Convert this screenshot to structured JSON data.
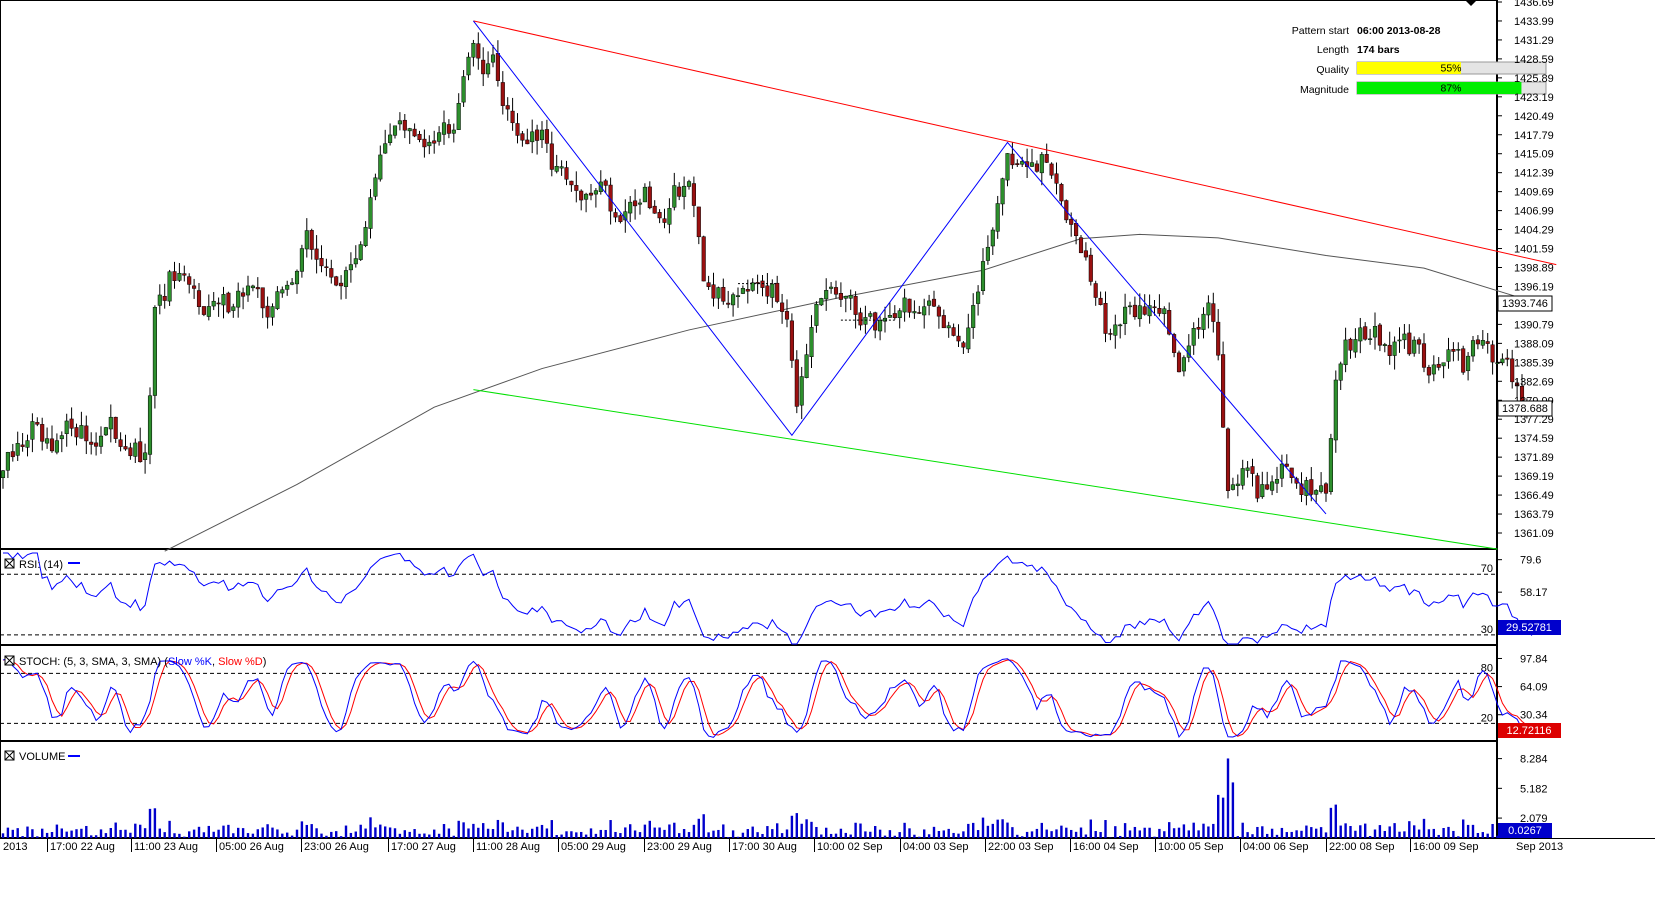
{
  "pattern_info": {
    "start_label": "Pattern start",
    "start_value": "06:00 2013-08-28",
    "length_label": "Length",
    "length_value": "174 bars",
    "quality_label": "Quality",
    "quality_value": "55%",
    "quality_fraction": 0.55,
    "magnitude_label": "Magnitude",
    "magnitude_value": "87%",
    "magnitude_fraction": 0.87
  },
  "colors": {
    "bull": "#2d8f2d",
    "bear": "#9a1010",
    "resistance": "#ff0000",
    "support": "#00e000",
    "zigzag": "#0000ff",
    "ma": "#555555",
    "rsi": "#0000ff",
    "stoch_k": "#0000ff",
    "stoch_d": "#ff0000",
    "volume": "#0000cc",
    "quality_bar": "#ffff00",
    "magnitude_bar": "#00ee00",
    "ma_value_box": "#ffffff",
    "rsi_value_box": "#0000cc",
    "stoch_value_box": "#dd0000",
    "volume_value_box": "#0000cc"
  },
  "chart_data": [
    {
      "type": "candlestick",
      "panel": "price",
      "y_ticks": [
        "1436.69",
        "1433.99",
        "1431.29",
        "1428.59",
        "1425.89",
        "1423.19",
        "1420.49",
        "1417.79",
        "1415.09",
        "1412.39",
        "1409.69",
        "1406.99",
        "1404.29",
        "1401.59",
        "1398.89",
        "1396.19",
        "1390.79",
        "1388.09",
        "1385.39",
        "1382.69",
        "1379.99",
        "1377.29",
        "1374.59",
        "1371.89",
        "1369.19",
        "1366.49",
        "1363.79",
        "1361.09"
      ],
      "ylim": [
        1358.5,
        1437.5
      ],
      "x_tick_labels": [
        "2013",
        "17:00 22 Aug",
        "11:00 23 Aug",
        "05:00 26 Aug",
        "23:00 26 Aug",
        "17:00 27 Aug",
        "11:00 28 Aug",
        "05:00 29 Aug",
        "23:00 29 Aug",
        "17:00 30 Aug",
        "10:00 02 Sep",
        "04:00 03 Sep",
        "22:00 03 Sep",
        "16:00 04 Sep",
        "10:00 05 Sep",
        "04:00 06 Sep",
        "22:00 08 Sep",
        "16:00 09 Sep",
        "Sep 2013"
      ],
      "path_anchors": [
        {
          "i": 0,
          "c": 1370
        },
        {
          "i": 6,
          "c": 1376
        },
        {
          "i": 10,
          "c": 1372
        },
        {
          "i": 14,
          "c": 1377
        },
        {
          "i": 18,
          "c": 1374
        },
        {
          "i": 22,
          "c": 1376
        },
        {
          "i": 26,
          "c": 1373
        },
        {
          "i": 29,
          "c": 1371
        },
        {
          "i": 31,
          "c": 1392
        },
        {
          "i": 34,
          "c": 1397
        },
        {
          "i": 38,
          "c": 1396
        },
        {
          "i": 42,
          "c": 1393
        },
        {
          "i": 46,
          "c": 1394
        },
        {
          "i": 50,
          "c": 1396
        },
        {
          "i": 54,
          "c": 1393
        },
        {
          "i": 58,
          "c": 1396
        },
        {
          "i": 62,
          "c": 1403
        },
        {
          "i": 66,
          "c": 1398
        },
        {
          "i": 70,
          "c": 1397
        },
        {
          "i": 74,
          "c": 1405
        },
        {
          "i": 77,
          "c": 1414
        },
        {
          "i": 80,
          "c": 1420
        },
        {
          "i": 84,
          "c": 1417
        },
        {
          "i": 88,
          "c": 1418
        },
        {
          "i": 92,
          "c": 1420
        },
        {
          "i": 95,
          "c": 1430
        },
        {
          "i": 98,
          "c": 1428
        },
        {
          "i": 100,
          "c": 1428
        },
        {
          "i": 102,
          "c": 1423
        },
        {
          "i": 106,
          "c": 1417
        },
        {
          "i": 110,
          "c": 1417
        },
        {
          "i": 113,
          "c": 1413
        },
        {
          "i": 116,
          "c": 1410
        },
        {
          "i": 119,
          "c": 1408
        },
        {
          "i": 122,
          "c": 1412
        },
        {
          "i": 125,
          "c": 1406
        },
        {
          "i": 128,
          "c": 1408
        },
        {
          "i": 131,
          "c": 1409
        },
        {
          "i": 134,
          "c": 1405
        },
        {
          "i": 137,
          "c": 1410
        },
        {
          "i": 140,
          "c": 1411
        },
        {
          "i": 143,
          "c": 1397
        },
        {
          "i": 147,
          "c": 1394
        },
        {
          "i": 150,
          "c": 1396
        },
        {
          "i": 154,
          "c": 1398
        },
        {
          "i": 157,
          "c": 1395
        },
        {
          "i": 160,
          "c": 1393
        },
        {
          "i": 162,
          "c": 1380
        },
        {
          "i": 164,
          "c": 1385
        },
        {
          "i": 166,
          "c": 1393
        },
        {
          "i": 169,
          "c": 1396
        },
        {
          "i": 172,
          "c": 1394
        },
        {
          "i": 175,
          "c": 1392
        },
        {
          "i": 178,
          "c": 1391
        },
        {
          "i": 181,
          "c": 1392
        },
        {
          "i": 184,
          "c": 1394
        },
        {
          "i": 187,
          "c": 1392
        },
        {
          "i": 190,
          "c": 1393
        },
        {
          "i": 193,
          "c": 1391
        },
        {
          "i": 196,
          "c": 1388
        },
        {
          "i": 198,
          "c": 1392
        },
        {
          "i": 200,
          "c": 1400
        },
        {
          "i": 203,
          "c": 1408
        },
        {
          "i": 205,
          "c": 1415
        },
        {
          "i": 208,
          "c": 1413
        },
        {
          "i": 211,
          "c": 1413
        },
        {
          "i": 213,
          "c": 1414
        },
        {
          "i": 216,
          "c": 1408
        },
        {
          "i": 219,
          "c": 1405
        },
        {
          "i": 222,
          "c": 1397
        },
        {
          "i": 225,
          "c": 1390
        },
        {
          "i": 228,
          "c": 1391
        },
        {
          "i": 231,
          "c": 1393
        },
        {
          "i": 234,
          "c": 1393
        },
        {
          "i": 237,
          "c": 1394
        },
        {
          "i": 240,
          "c": 1383
        },
        {
          "i": 243,
          "c": 1390
        },
        {
          "i": 246,
          "c": 1395
        },
        {
          "i": 248,
          "c": 1386
        },
        {
          "i": 250,
          "c": 1368
        },
        {
          "i": 253,
          "c": 1370
        },
        {
          "i": 256,
          "c": 1367
        },
        {
          "i": 259,
          "c": 1369
        },
        {
          "i": 262,
          "c": 1370
        },
        {
          "i": 265,
          "c": 1368
        },
        {
          "i": 268,
          "c": 1367
        },
        {
          "i": 270,
          "c": 1366
        },
        {
          "i": 272,
          "c": 1384
        },
        {
          "i": 274,
          "c": 1388
        },
        {
          "i": 277,
          "c": 1390
        },
        {
          "i": 280,
          "c": 1389
        },
        {
          "i": 283,
          "c": 1387
        },
        {
          "i": 286,
          "c": 1388
        },
        {
          "i": 289,
          "c": 1387
        },
        {
          "i": 292,
          "c": 1384
        },
        {
          "i": 295,
          "c": 1387
        },
        {
          "i": 298,
          "c": 1385
        },
        {
          "i": 301,
          "c": 1388
        },
        {
          "i": 304,
          "c": 1387
        },
        {
          "i": 307,
          "c": 1386
        },
        {
          "i": 310,
          "c": 1379
        }
      ],
      "resistance_line": {
        "from": {
          "i": 96,
          "y": 1434.0
        },
        "to": {
          "i": 317,
          "y": 1399.3
        }
      },
      "support_line": {
        "from": {
          "i": 96,
          "y": 1381.5
        },
        "to": {
          "i": 305,
          "y": 1358.8
        }
      },
      "zigzag": [
        {
          "i": 96,
          "y": 1434.0
        },
        {
          "i": 161,
          "y": 1375.0
        },
        {
          "i": 205,
          "y": 1416.7
        },
        {
          "i": 270,
          "y": 1363.8
        }
      ],
      "moving_average": [
        [
          33,
          1358.5
        ],
        [
          60,
          1368
        ],
        [
          88,
          1379
        ],
        [
          110,
          1384.5
        ],
        [
          140,
          1390
        ],
        [
          170,
          1394.5
        ],
        [
          200,
          1398.5
        ],
        [
          220,
          1403
        ],
        [
          232,
          1403.6
        ],
        [
          248,
          1403.1
        ],
        [
          270,
          1400.6
        ],
        [
          290,
          1398.8
        ],
        [
          310,
          1394.5
        ],
        [
          313,
          1393.75
        ]
      ],
      "moving_average_value": "1393.746",
      "last_price_value": "1378.688",
      "last_price": 1378.688
    },
    {
      "type": "line",
      "panel": "rsi",
      "title": "RSI: (14)",
      "y_ticks": [
        "79.6",
        "58.17",
        "36.74"
      ],
      "levels": [
        "70",
        "30"
      ],
      "ylim": [
        24,
        84
      ],
      "current_value": "29.52781",
      "current": 29.53
    },
    {
      "type": "line",
      "panel": "stochastic",
      "title": "STOCH: (5, 3, SMA, 3, SMA)",
      "series": [
        {
          "name": "Slow %K"
        },
        {
          "name": "Slow %D"
        }
      ],
      "y_ticks": [
        "97.84",
        "64.09",
        "30.34"
      ],
      "levels": [
        "80",
        "20"
      ],
      "ylim": [
        0,
        108
      ],
      "current_value": "12.72116",
      "current": 12.72
    },
    {
      "type": "bar",
      "panel": "volume",
      "title": "VOLUME",
      "y_ticks": [
        "8.284",
        "5.182",
        "2.079"
      ],
      "ylim": [
        0,
        9.6
      ],
      "current_value": "0.0267",
      "current": 0.0267
    }
  ]
}
